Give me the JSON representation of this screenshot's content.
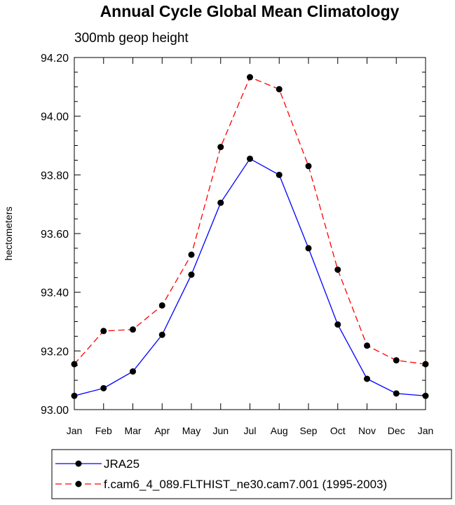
{
  "chart_data": {
    "type": "line",
    "title": "Annual Cycle Global Mean Climatology",
    "subtitle": "300mb geop height",
    "xlabel": "",
    "ylabel": "hectometers",
    "categories": [
      "Jan",
      "Feb",
      "Mar",
      "Apr",
      "May",
      "Jun",
      "Jul",
      "Aug",
      "Sep",
      "Oct",
      "Nov",
      "Dec",
      "Jan"
    ],
    "ylim": [
      93.0,
      94.2
    ],
    "yticks": [
      "93.00",
      "93.20",
      "93.40",
      "93.60",
      "93.80",
      "94.00",
      "94.20"
    ],
    "series": [
      {
        "name": "JRA25",
        "color": "#0000ff",
        "dash": "solid",
        "values": [
          93.047,
          93.073,
          93.13,
          93.255,
          93.46,
          93.705,
          93.855,
          93.8,
          93.55,
          93.29,
          93.105,
          93.055,
          93.047
        ]
      },
      {
        "name": "f.cam6_4_089.FLTHIST_ne30.cam7.001 (1995-2003)",
        "color": "#ff0000",
        "dash": "dashed",
        "values": [
          93.155,
          93.268,
          93.273,
          93.355,
          93.528,
          93.895,
          94.133,
          94.092,
          93.83,
          93.477,
          93.218,
          93.168,
          93.155
        ]
      }
    ],
    "legend": "bottom",
    "grid": false
  }
}
